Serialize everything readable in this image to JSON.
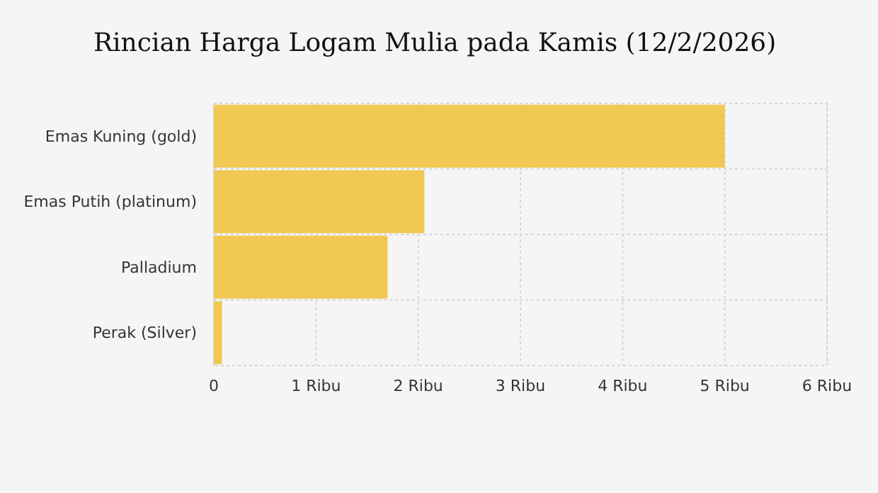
{
  "chart_data": {
    "type": "bar",
    "orientation": "horizontal",
    "title": "Rincian Harga Logam Mulia pada Kamis (12/2/2026)",
    "categories": [
      "Emas Kuning (gold)",
      "Emas Putih (platinum)",
      "Palladium",
      "Perak (Silver)"
    ],
    "values": [
      5.0,
      2.06,
      1.7,
      0.08
    ],
    "color": "#f0c853",
    "xlim": [
      0,
      6
    ],
    "xticks": [
      0,
      {
        "value": 1,
        "label": "1 Ribu"
      },
      {
        "value": 2,
        "label": "2 Ribu"
      },
      {
        "value": 3,
        "label": "3 Ribu"
      },
      {
        "value": 4,
        "label": "4 Ribu"
      },
      {
        "value": 5,
        "label": "5 Ribu"
      },
      {
        "value": 6,
        "label": "6 Ribu"
      }
    ],
    "grid": true
  }
}
